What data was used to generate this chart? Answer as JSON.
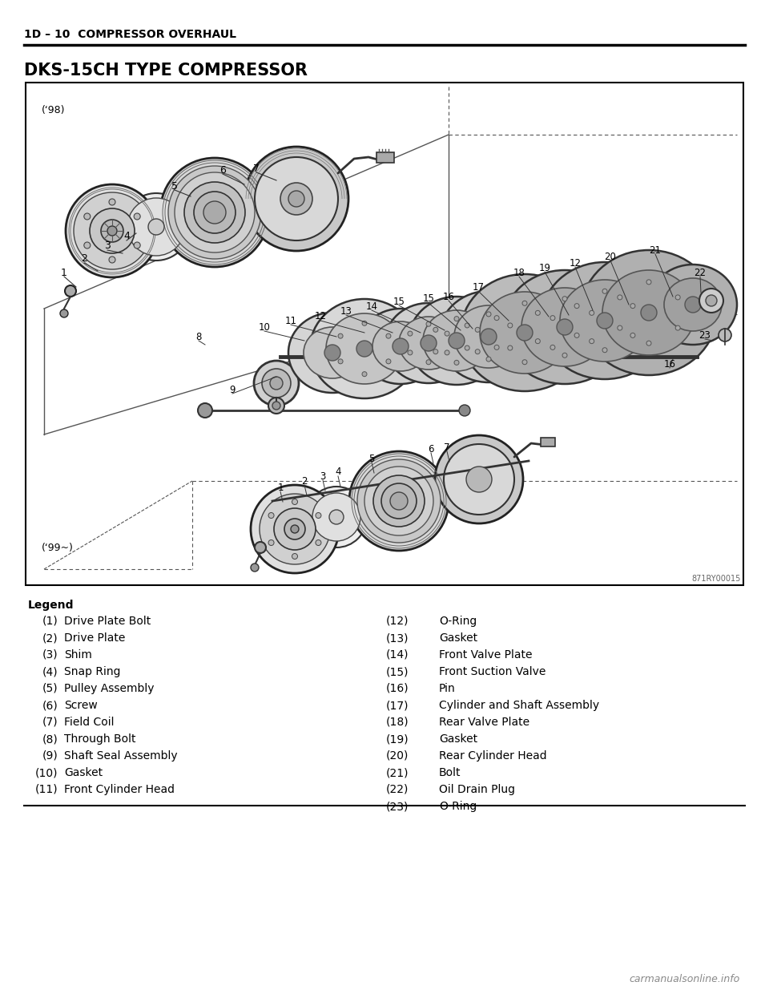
{
  "header_text": "1D – 10  COMPRESSOR OVERHAUL",
  "section_title": "DKS-15CH TYPE COMPRESSOR",
  "background_color": "#ffffff",
  "text_color": "#000000",
  "image_note_98": "(‘98)",
  "image_note_99": "(‘99~)",
  "image_ref": "871RY00015",
  "legend_title": "Legend",
  "left_legend": [
    [
      "(1)",
      "Drive Plate Bolt"
    ],
    [
      "(2)",
      "Drive Plate"
    ],
    [
      "(3)",
      "Shim"
    ],
    [
      "(4)",
      "Snap Ring"
    ],
    [
      "(5)",
      "Pulley Assembly"
    ],
    [
      "(6)",
      "Screw"
    ],
    [
      "(7)",
      "Field Coil"
    ],
    [
      "(8)",
      "Through Bolt"
    ],
    [
      "(9)",
      "Shaft Seal Assembly"
    ],
    [
      "(10)",
      "Gasket"
    ],
    [
      "(11)",
      "Front Cylinder Head"
    ]
  ],
  "right_legend": [
    [
      "(12)",
      "O-Ring"
    ],
    [
      "(13)",
      "Gasket"
    ],
    [
      "(14)",
      "Front Valve Plate"
    ],
    [
      "(15)",
      "Front Suction Valve"
    ],
    [
      "(16)",
      "Pin"
    ],
    [
      "(17)",
      "Cylinder and Shaft Assembly"
    ],
    [
      "(18)",
      "Rear Valve Plate"
    ],
    [
      "(19)",
      "Gasket"
    ],
    [
      "(20)",
      "Rear Cylinder Head"
    ],
    [
      "(21)",
      "Bolt"
    ],
    [
      "(22)",
      "Oil Drain Plug"
    ],
    [
      "(23)",
      "O-Ring"
    ]
  ],
  "fig_width": 9.6,
  "fig_height": 12.5,
  "dpi": 100,
  "header_fontsize": 10,
  "title_fontsize": 15,
  "legend_title_fontsize": 10,
  "legend_item_fontsize": 10,
  "image_ref_fontsize": 7
}
